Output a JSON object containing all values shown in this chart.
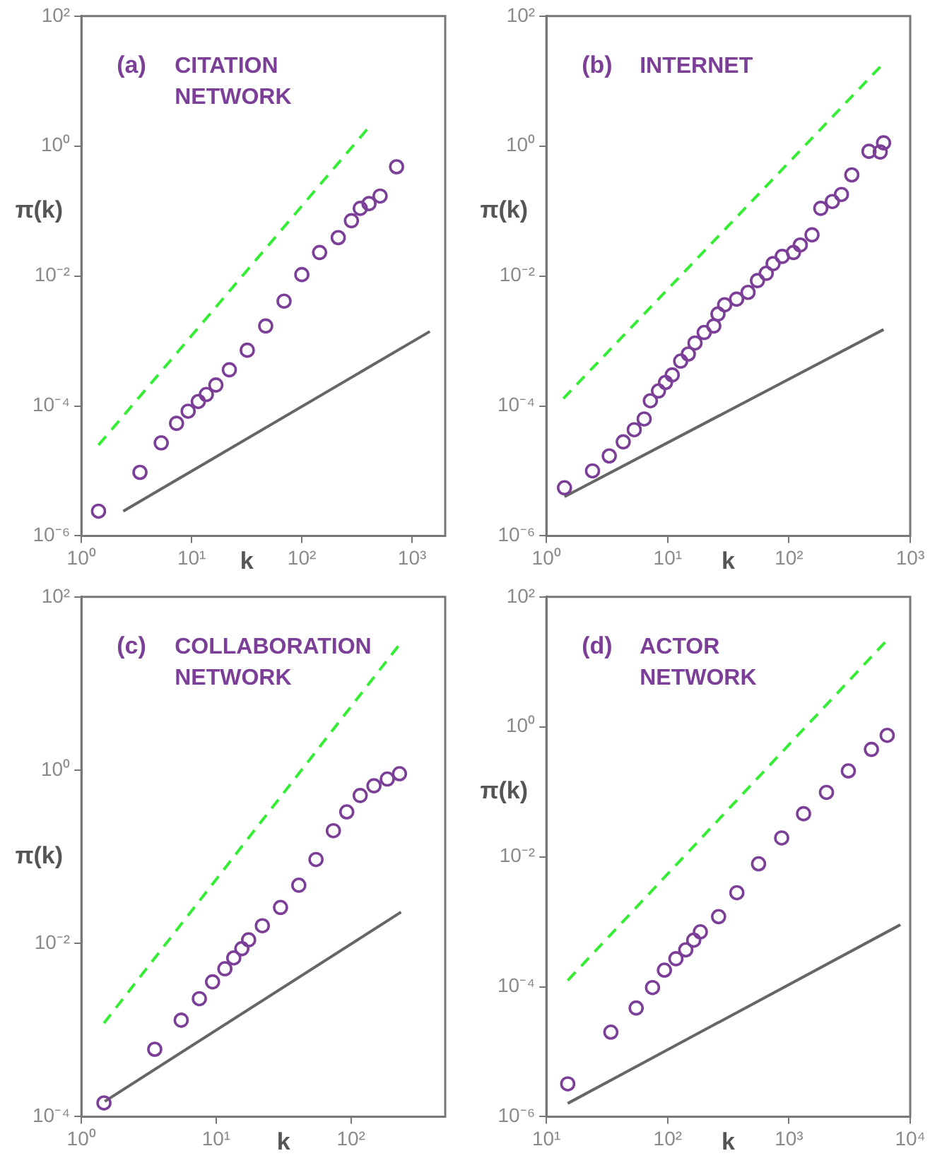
{
  "chart_data": [
    {
      "type": "scatter",
      "annotations": [
        "(a)",
        "CITATION NETWORK"
      ],
      "xlabel": "k",
      "ylabel": "π(k)",
      "log": "xy",
      "grid": false,
      "legend": false,
      "xlim": [
        1,
        2000
      ],
      "ylim": [
        1e-06,
        100
      ],
      "xticks": [
        {
          "value": 1,
          "label": "10⁰"
        },
        {
          "value": 10,
          "label": "10¹"
        },
        {
          "value": 100,
          "label": "10²"
        },
        {
          "value": 1000,
          "label": "10³"
        }
      ],
      "yticks": [
        {
          "value": 1e-06,
          "label": "10⁻⁶"
        },
        {
          "value": 0.0001,
          "label": "10⁻⁴"
        },
        {
          "value": 0.01,
          "label": "10⁻²"
        },
        {
          "value": 1,
          "label": "10⁰"
        },
        {
          "value": 100,
          "label": "10²"
        }
      ],
      "series": [
        {
          "type": "scatter",
          "marker": "circle",
          "color": "#7b3f98",
          "x": [
            1.43,
            3.4,
            5.3,
            7.3,
            9.3,
            11.5,
            13.6,
            16.6,
            22,
            32,
            47,
            69,
            100,
            145,
            214,
            282,
            339,
            407,
            513,
            724
          ],
          "values": [
            2.4e-06,
            9.5e-06,
            2.7e-05,
            5.4e-05,
            8.3e-05,
            0.000117,
            0.00015,
            0.00021,
            0.00036,
            0.00072,
            0.0017,
            0.0041,
            0.0105,
            0.023,
            0.039,
            0.071,
            0.11,
            0.13,
            0.17,
            0.48
          ]
        },
        {
          "type": "line",
          "marker": "none",
          "line_style": "dashed",
          "color": "#33ee33",
          "x": [
            1.43,
            390
          ],
          "values": [
            2.5e-05,
            1.8
          ]
        },
        {
          "type": "line",
          "marker": "none",
          "line_style": "solid",
          "color": "#666666",
          "x": [
            2.4,
            1450
          ],
          "values": [
            2.4e-06,
            0.0014
          ]
        }
      ]
    },
    {
      "type": "scatter",
      "annotations": [
        "(b)",
        "INTERNET"
      ],
      "xlabel": "k",
      "ylabel": "π(k)",
      "log": "xy",
      "grid": false,
      "legend": false,
      "xlim": [
        1,
        1000
      ],
      "ylim": [
        1e-06,
        100
      ],
      "xticks": [
        {
          "value": 1,
          "label": "10⁰"
        },
        {
          "value": 10,
          "label": "10¹"
        },
        {
          "value": 100,
          "label": "10²"
        },
        {
          "value": 1000,
          "label": "10³"
        }
      ],
      "yticks": [
        {
          "value": 1e-06,
          "label": "10⁻⁶"
        },
        {
          "value": 0.0001,
          "label": "10⁻⁴"
        },
        {
          "value": 0.01,
          "label": "10⁻²"
        },
        {
          "value": 1,
          "label": "10⁰"
        },
        {
          "value": 100,
          "label": "10²"
        }
      ],
      "series": [
        {
          "type": "scatter",
          "marker": "circle",
          "color": "#7b3f98",
          "x": [
            1.41,
            2.4,
            3.3,
            4.3,
            5.3,
            6.4,
            7.2,
            8.4,
            9.6,
            10.9,
            12.8,
            14.8,
            16.8,
            20,
            24,
            26,
            29.5,
            37,
            46,
            55,
            65,
            74,
            88,
            109,
            124,
            155,
            183,
            228,
            271,
            330,
            457,
            566,
            603
          ],
          "values": [
            5.5e-06,
            1e-05,
            1.7e-05,
            2.8e-05,
            4.3e-05,
            6.3e-05,
            0.00012,
            0.00017,
            0.00023,
            0.0003,
            0.00049,
            0.00063,
            0.00093,
            0.00135,
            0.0017,
            0.0026,
            0.0036,
            0.0044,
            0.0056,
            0.0085,
            0.011,
            0.0155,
            0.02,
            0.023,
            0.03,
            0.043,
            0.11,
            0.14,
            0.18,
            0.36,
            0.83,
            0.81,
            1.12
          ]
        },
        {
          "type": "line",
          "marker": "none",
          "line_style": "dashed",
          "color": "#33ee33",
          "x": [
            1.38,
            566
          ],
          "values": [
            0.00013,
            16.6
          ]
        },
        {
          "type": "line",
          "marker": "none",
          "line_style": "solid",
          "color": "#666666",
          "x": [
            1.41,
            603
          ],
          "values": [
            4e-06,
            0.0015
          ]
        }
      ]
    },
    {
      "type": "scatter",
      "annotations": [
        "(c)",
        "COLLABORATION NETWORK"
      ],
      "xlabel": "k",
      "ylabel": "π(k)",
      "log": "xy",
      "grid": false,
      "legend": false,
      "xlim": [
        1,
        500
      ],
      "ylim": [
        0.0001,
        100
      ],
      "xticks": [
        {
          "value": 1,
          "label": "10⁰"
        },
        {
          "value": 10,
          "label": "10¹"
        },
        {
          "value": 100,
          "label": "10²"
        }
      ],
      "yticks": [
        {
          "value": 0.0001,
          "label": "10⁻⁴"
        },
        {
          "value": 0.01,
          "label": "10⁻²"
        },
        {
          "value": 1,
          "label": "10⁰"
        },
        {
          "value": 100,
          "label": "10²"
        }
      ],
      "series": [
        {
          "type": "scatter",
          "marker": "circle",
          "color": "#7b3f98",
          "x": [
            1.47,
            3.5,
            5.5,
            7.5,
            9.4,
            11.6,
            13.5,
            15.5,
            17.4,
            22,
            30,
            41,
            55,
            74,
            93,
            117,
            148,
            186,
            229
          ],
          "values": [
            0.000144,
            0.0006,
            0.0013,
            0.0023,
            0.0036,
            0.0051,
            0.0068,
            0.0087,
            0.011,
            0.016,
            0.026,
            0.047,
            0.093,
            0.2,
            0.33,
            0.51,
            0.66,
            0.79,
            0.91
          ]
        },
        {
          "type": "line",
          "marker": "none",
          "line_style": "dashed",
          "color": "#33ee33",
          "x": [
            1.47,
            224
          ],
          "values": [
            0.0012,
            27
          ]
        },
        {
          "type": "line",
          "marker": "none",
          "line_style": "solid",
          "color": "#666666",
          "x": [
            1.49,
            235
          ],
          "values": [
            0.00015,
            0.023
          ]
        }
      ]
    },
    {
      "type": "scatter",
      "annotations": [
        "(d)",
        "ACTOR NETWORK"
      ],
      "xlabel": "k",
      "ylabel": "π(k)",
      "log": "xy",
      "grid": false,
      "legend": false,
      "xlim": [
        10,
        10000
      ],
      "ylim": [
        1e-06,
        100
      ],
      "xticks": [
        {
          "value": 10,
          "label": "10¹"
        },
        {
          "value": 100,
          "label": "10²"
        },
        {
          "value": 1000,
          "label": "10³"
        },
        {
          "value": 10000,
          "label": "10⁴"
        }
      ],
      "yticks": [
        {
          "value": 1e-06,
          "label": "10⁻⁶"
        },
        {
          "value": 0.0001,
          "label": "10⁻⁴"
        },
        {
          "value": 0.01,
          "label": "10⁻²"
        },
        {
          "value": 1,
          "label": "10⁰"
        },
        {
          "value": 100,
          "label": "10²"
        }
      ],
      "series": [
        {
          "type": "scatter",
          "marker": "circle",
          "color": "#7b3f98",
          "x": [
            15,
            34,
            55,
            75,
            94,
            117,
            141,
            164,
            186,
            263,
            372,
            562,
            871,
            1320,
            2040,
            3090,
            4790,
            6460
          ],
          "values": [
            3.2e-06,
            2e-05,
            4.7e-05,
            9.7e-05,
            0.00018,
            0.00027,
            0.00037,
            0.00052,
            0.0007,
            0.0012,
            0.0028,
            0.0078,
            0.0195,
            0.046,
            0.098,
            0.21,
            0.45,
            0.74
          ]
        },
        {
          "type": "line",
          "marker": "none",
          "line_style": "dashed",
          "color": "#33ee33",
          "x": [
            15,
            6200
          ],
          "values": [
            0.000125,
            20
          ]
        },
        {
          "type": "line",
          "marker": "none",
          "line_style": "solid",
          "color": "#666666",
          "x": [
            15,
            8300
          ],
          "values": [
            1.6e-06,
            0.0009
          ]
        }
      ]
    }
  ]
}
